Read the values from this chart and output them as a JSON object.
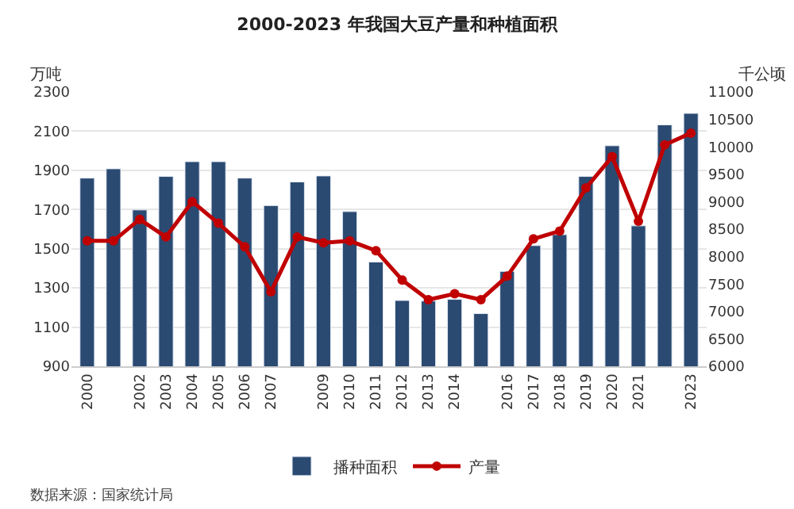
{
  "chart_data": {
    "type": "bar",
    "title": "2000-2023 年我国大豆产量和种植面积",
    "ylabel": "万吨",
    "y2label": "千公顷",
    "categories": [
      "2000",
      null,
      "2002",
      "2003",
      "2004",
      "2005",
      "2006",
      "2007",
      null,
      "2009",
      "2010",
      "2011",
      "2012",
      "2013",
      "2014",
      null,
      "2016",
      "2017",
      "2018",
      "2019",
      "2020",
      "2021",
      null,
      "2023"
    ],
    "series": [
      {
        "name": "播种面积",
        "axis": "y2",
        "color": "#2b4a72",
        "values": [
          9430,
          9600,
          8850,
          9460,
          9730,
          9730,
          9430,
          8930,
          9360,
          9470,
          8820,
          7900,
          7200,
          7190,
          7220,
          6960,
          7730,
          8200,
          8400,
          9460,
          10020,
          8560,
          10400,
          10610
        ]
      },
      {
        "name": "产量",
        "type": "line",
        "axis": "y",
        "color": "#c00000",
        "marker": "circle",
        "values": [
          1540,
          1540,
          1650,
          1560,
          1740,
          1630,
          1510,
          1280,
          1560,
          1530,
          1540,
          1490,
          1340,
          1240,
          1270,
          1240,
          1360,
          1550,
          1590,
          1810,
          1970,
          1640,
          2030,
          2090
        ]
      }
    ],
    "ylim": [
      900,
      2300
    ],
    "yticks": [
      900,
      1100,
      1300,
      1500,
      1700,
      1900,
      2100,
      2300
    ],
    "y2lim": [
      6000,
      11000
    ],
    "y2ticks": [
      6000,
      6500,
      7000,
      7500,
      8000,
      8500,
      9000,
      9500,
      10000,
      10500,
      11000
    ],
    "grid": "y",
    "legend": "bottom",
    "annotations": [
      "数据来源：国家统计局"
    ]
  }
}
